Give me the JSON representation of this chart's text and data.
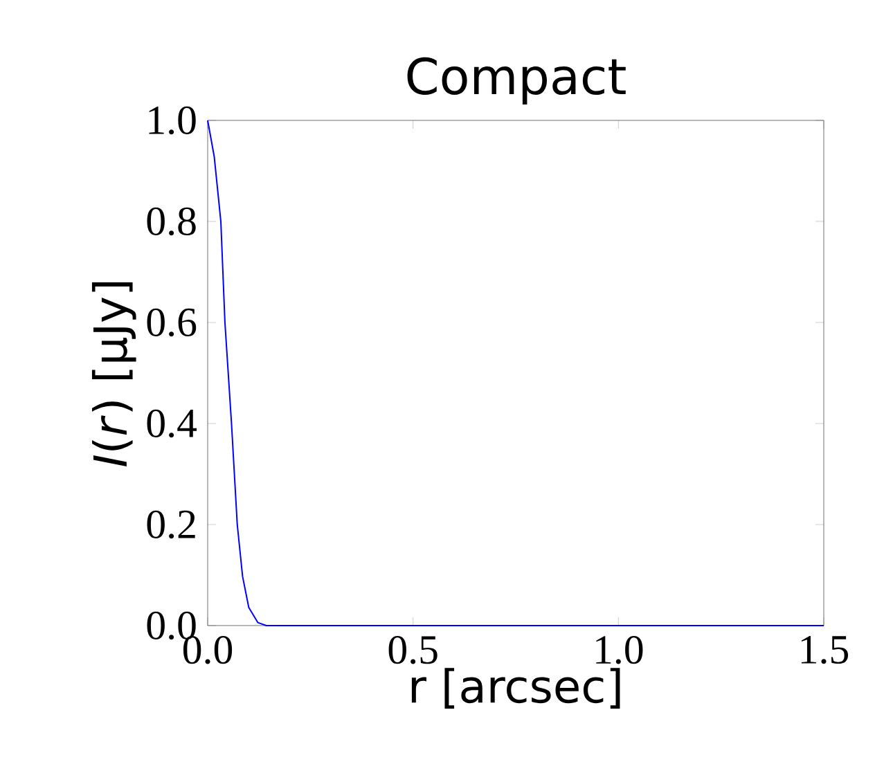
{
  "chart_data": {
    "type": "line",
    "title": "Compact",
    "xlabel": "r [arcsec]",
    "ylabel": "*I*(*r*) [μJy]",
    "x": [
      0,
      0.016,
      0.032,
      0.042,
      0.058,
      0.072,
      0.085,
      0.1,
      0.122,
      0.143,
      0.3,
      0.6,
      1.0,
      1.5
    ],
    "series": [
      {
        "color": "#0000ff",
        "values": [
          1.0,
          0.928,
          0.8,
          0.6,
          0.4,
          0.2,
          0.097,
          0.036,
          0.006,
          0,
          0,
          0,
          0,
          0
        ]
      }
    ],
    "xlim": [
      0,
      1.5
    ],
    "ylim": [
      0,
      1.0
    ],
    "xticks": [
      {
        "value": 0,
        "label": "0.0"
      },
      0.5,
      {
        "value": 1,
        "label": "1.0"
      },
      1.5
    ],
    "yticks": [
      {
        "value": 0,
        "label": "0.0"
      },
      0.2,
      0.4,
      0.6,
      0.8,
      {
        "value": 1,
        "label": "1.0"
      }
    ],
    "grid": false,
    "line_style": "solid",
    "marker": "none"
  }
}
